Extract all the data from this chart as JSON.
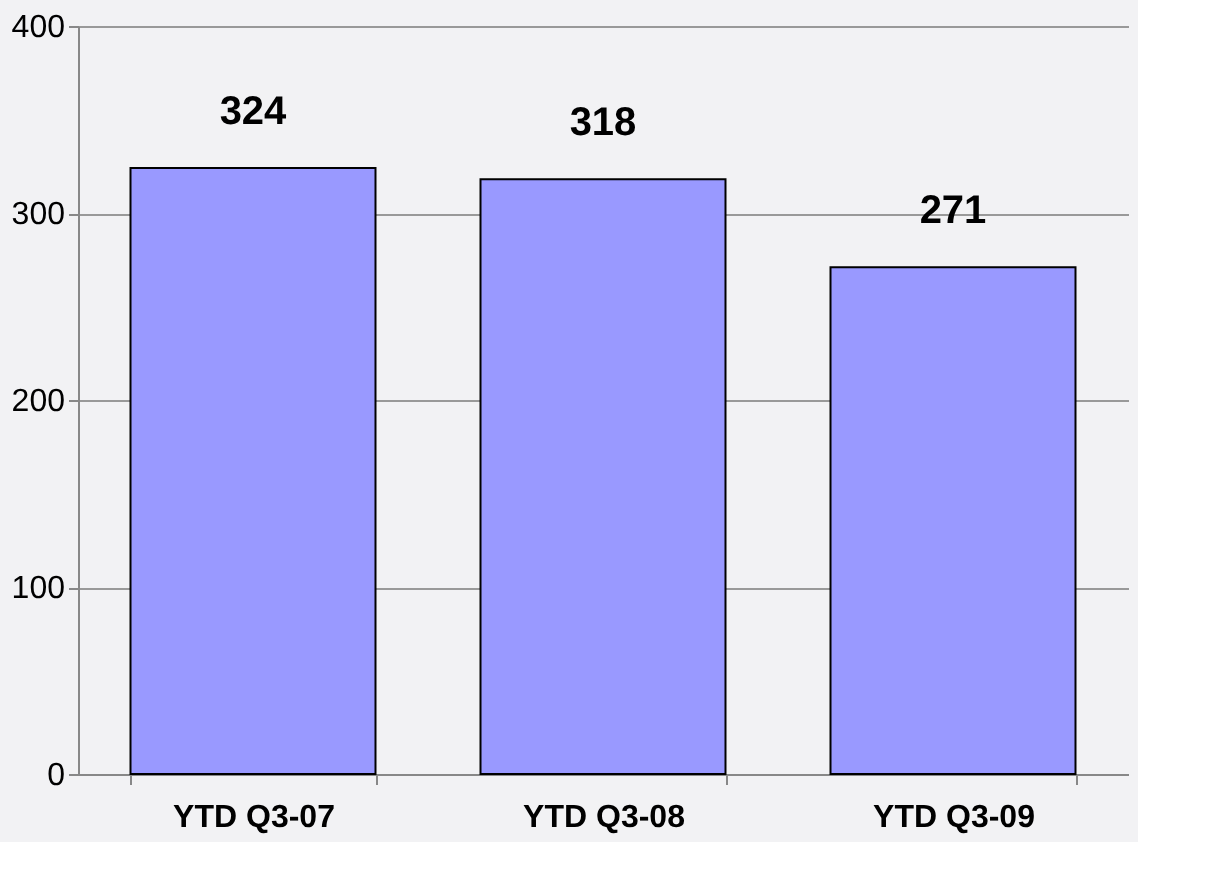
{
  "chart_data": {
    "type": "bar",
    "categories": [
      "YTD Q3-07",
      "YTD Q3-08",
      "YTD Q3-09"
    ],
    "values": [
      324,
      318,
      271
    ],
    "color": "#9999ff",
    "ylim": [
      0,
      400
    ],
    "yticks": [
      0,
      100,
      200,
      300,
      400
    ],
    "grid": "y",
    "data_labels": true
  }
}
